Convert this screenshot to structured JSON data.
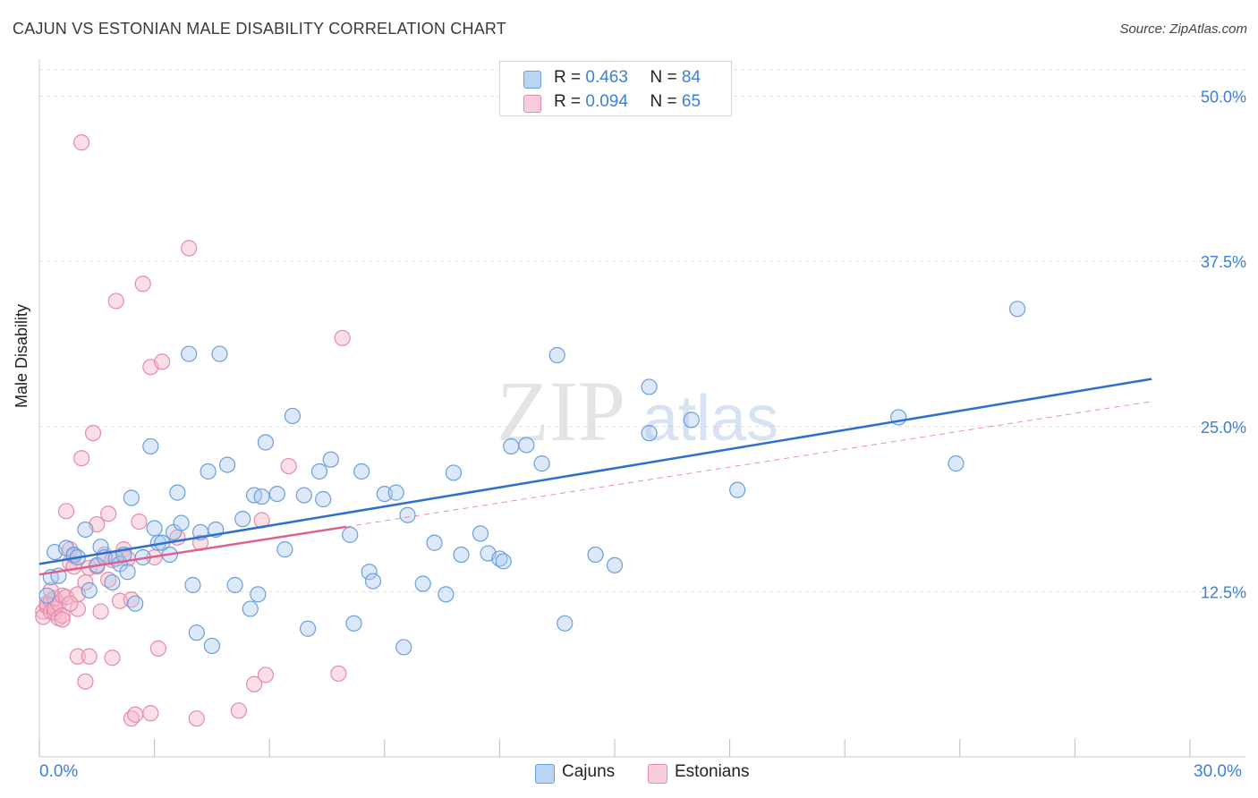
{
  "title": "CAJUN VS ESTONIAN MALE DISABILITY CORRELATION CHART",
  "source": "Source: ZipAtlas.com",
  "watermark": {
    "zip": "ZIP",
    "atlas": "atlas"
  },
  "colors": {
    "cajun_fill": "#a9c8ef",
    "cajun_stroke": "#6a9fdc",
    "cajun_line": "#2b6fd0",
    "estonian_fill": "#f5b8ca",
    "estonian_stroke": "#e88aa7",
    "estonian_line": "#e0608c",
    "axis_text": "#3d7fd6",
    "grid": "#dddddd"
  },
  "legend_top": {
    "rows": [
      {
        "r_label": "R =",
        "r_value": "0.463",
        "n_label": "N =",
        "n_value": "84"
      },
      {
        "r_label": "R =",
        "r_value": "0.094",
        "n_label": "N =",
        "n_value": "65"
      }
    ]
  },
  "legend_bottom": {
    "cajuns": "Cajuns",
    "estonians": "Estonians"
  },
  "chart_data": {
    "type": "scatter",
    "title": "CAJUN VS ESTONIAN MALE DISABILITY CORRELATION CHART",
    "xlabel": "",
    "ylabel": "Male Disability",
    "xlim": [
      0,
      30
    ],
    "ylim": [
      0,
      52
    ],
    "x_tick_labels": {
      "min": "0.0%",
      "max": "30.0%"
    },
    "y_ticks": [
      12.5,
      25.0,
      37.5,
      50.0
    ],
    "y_tick_labels": [
      "12.5%",
      "25.0%",
      "37.5%",
      "50.0%"
    ],
    "grid": true,
    "series": [
      {
        "name": "Cajuns",
        "R": 0.463,
        "N": 84,
        "trend": {
          "x": [
            0,
            29.0
          ],
          "y": [
            14.6,
            28.6
          ]
        },
        "points": [
          [
            0.2,
            12.2
          ],
          [
            0.3,
            13.6
          ],
          [
            0.4,
            15.5
          ],
          [
            0.5,
            13.7
          ],
          [
            0.7,
            15.8
          ],
          [
            0.9,
            15.3
          ],
          [
            1.0,
            15.1
          ],
          [
            1.2,
            17.2
          ],
          [
            1.3,
            12.6
          ],
          [
            1.5,
            14.5
          ],
          [
            1.6,
            15.9
          ],
          [
            1.7,
            15.1
          ],
          [
            1.9,
            13.2
          ],
          [
            2.0,
            15.0
          ],
          [
            2.1,
            14.6
          ],
          [
            2.2,
            15.3
          ],
          [
            2.3,
            14.0
          ],
          [
            2.4,
            19.6
          ],
          [
            2.5,
            11.6
          ],
          [
            2.7,
            15.1
          ],
          [
            2.9,
            23.5
          ],
          [
            3.0,
            17.3
          ],
          [
            3.1,
            16.2
          ],
          [
            3.2,
            16.2
          ],
          [
            3.4,
            15.3
          ],
          [
            3.5,
            17.0
          ],
          [
            3.6,
            20.0
          ],
          [
            3.7,
            17.7
          ],
          [
            3.9,
            30.5
          ],
          [
            4.0,
            13.0
          ],
          [
            4.1,
            9.4
          ],
          [
            4.2,
            17.0
          ],
          [
            4.4,
            21.6
          ],
          [
            4.5,
            8.4
          ],
          [
            4.6,
            17.2
          ],
          [
            4.7,
            30.5
          ],
          [
            4.9,
            22.1
          ],
          [
            5.1,
            13.0
          ],
          [
            5.3,
            18.0
          ],
          [
            5.5,
            11.2
          ],
          [
            5.6,
            19.8
          ],
          [
            5.7,
            12.3
          ],
          [
            5.8,
            19.7
          ],
          [
            5.9,
            23.8
          ],
          [
            6.2,
            19.9
          ],
          [
            6.4,
            15.7
          ],
          [
            6.6,
            25.8
          ],
          [
            6.9,
            19.8
          ],
          [
            7.0,
            9.7
          ],
          [
            7.3,
            21.6
          ],
          [
            7.4,
            19.5
          ],
          [
            7.6,
            22.5
          ],
          [
            8.1,
            16.8
          ],
          [
            8.2,
            10.1
          ],
          [
            8.4,
            21.6
          ],
          [
            8.6,
            14.0
          ],
          [
            8.7,
            13.3
          ],
          [
            9.0,
            19.9
          ],
          [
            9.3,
            20.0
          ],
          [
            9.5,
            8.3
          ],
          [
            9.6,
            18.3
          ],
          [
            10.0,
            13.1
          ],
          [
            10.3,
            16.2
          ],
          [
            10.6,
            12.3
          ],
          [
            10.8,
            21.5
          ],
          [
            11.0,
            15.3
          ],
          [
            11.5,
            16.9
          ],
          [
            11.7,
            15.4
          ],
          [
            12.0,
            15.0
          ],
          [
            12.1,
            14.8
          ],
          [
            12.3,
            23.5
          ],
          [
            12.7,
            23.6
          ],
          [
            13.1,
            22.2
          ],
          [
            13.5,
            30.4
          ],
          [
            13.7,
            10.1
          ],
          [
            14.5,
            15.3
          ],
          [
            15.0,
            14.5
          ],
          [
            15.9,
            28.0
          ],
          [
            15.9,
            24.5
          ],
          [
            17.0,
            25.5
          ],
          [
            18.2,
            20.2
          ],
          [
            22.4,
            25.7
          ],
          [
            23.9,
            22.2
          ],
          [
            25.5,
            33.9
          ]
        ]
      },
      {
        "name": "Estonians",
        "R": 0.094,
        "N": 65,
        "trend": {
          "x": [
            0,
            29.0
          ],
          "y": [
            13.8,
            26.9
          ]
        },
        "trend_solid_to_x": 8.0,
        "points": [
          [
            0.1,
            11.0
          ],
          [
            0.1,
            10.6
          ],
          [
            0.2,
            11.4
          ],
          [
            0.2,
            11.6
          ],
          [
            0.3,
            11.8
          ],
          [
            0.3,
            11.0
          ],
          [
            0.4,
            10.9
          ],
          [
            0.4,
            11.2
          ],
          [
            0.4,
            12.0
          ],
          [
            0.5,
            11.6
          ],
          [
            0.5,
            10.5
          ],
          [
            0.6,
            10.7
          ],
          [
            0.6,
            12.2
          ],
          [
            0.6,
            10.4
          ],
          [
            0.7,
            12.1
          ],
          [
            0.7,
            18.6
          ],
          [
            0.8,
            15.7
          ],
          [
            0.8,
            14.7
          ],
          [
            0.9,
            15.2
          ],
          [
            0.9,
            14.4
          ],
          [
            1.0,
            12.3
          ],
          [
            1.0,
            11.2
          ],
          [
            1.0,
            7.6
          ],
          [
            1.1,
            22.6
          ],
          [
            1.1,
            46.5
          ],
          [
            1.2,
            13.2
          ],
          [
            1.2,
            5.7
          ],
          [
            1.3,
            7.6
          ],
          [
            1.3,
            14.3
          ],
          [
            1.4,
            24.5
          ],
          [
            1.5,
            17.6
          ],
          [
            1.5,
            14.4
          ],
          [
            1.6,
            11.0
          ],
          [
            1.7,
            15.3
          ],
          [
            1.8,
            18.4
          ],
          [
            1.8,
            13.4
          ],
          [
            1.9,
            7.5
          ],
          [
            1.9,
            14.9
          ],
          [
            2.0,
            34.5
          ],
          [
            2.1,
            11.8
          ],
          [
            2.2,
            15.7
          ],
          [
            2.3,
            15.0
          ],
          [
            2.4,
            11.9
          ],
          [
            2.4,
            2.9
          ],
          [
            2.5,
            3.2
          ],
          [
            2.6,
            17.8
          ],
          [
            2.7,
            35.8
          ],
          [
            2.9,
            29.5
          ],
          [
            2.9,
            3.3
          ],
          [
            3.0,
            15.1
          ],
          [
            3.1,
            8.2
          ],
          [
            3.2,
            29.9
          ],
          [
            3.6,
            16.6
          ],
          [
            3.9,
            38.5
          ],
          [
            4.1,
            2.9
          ],
          [
            4.2,
            16.2
          ],
          [
            5.2,
            3.5
          ],
          [
            5.6,
            5.5
          ],
          [
            5.8,
            17.9
          ],
          [
            5.9,
            6.2
          ],
          [
            6.5,
            22.0
          ],
          [
            7.8,
            6.3
          ],
          [
            7.9,
            31.7
          ],
          [
            0.3,
            12.6
          ],
          [
            0.8,
            11.6
          ]
        ]
      }
    ]
  }
}
